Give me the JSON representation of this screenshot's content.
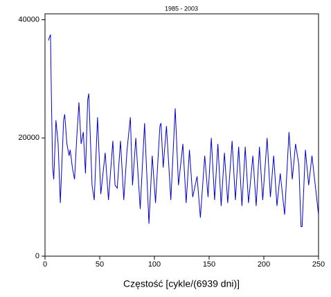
{
  "chart_data": {
    "type": "line",
    "title": "1985 - 2003",
    "x_label": "Częstość [cykle/(6939 dni)]",
    "xlim": [
      0,
      250
    ],
    "xticks": [
      0,
      50,
      100,
      150,
      200,
      250
    ],
    "ylim": [
      0,
      41000
    ],
    "yticks": [
      0,
      20000,
      40000
    ],
    "series": [
      {
        "color": "#0000cc",
        "x": [
          3,
          5,
          6,
          7,
          8,
          10,
          12,
          14,
          17,
          18,
          20,
          22,
          23,
          25,
          27,
          29,
          31,
          33,
          35,
          37,
          39,
          40,
          43,
          45,
          48,
          51,
          55,
          58,
          62,
          64,
          66,
          69,
          72,
          75,
          78,
          80,
          83,
          87,
          91,
          95,
          98,
          101,
          105,
          106,
          108,
          111,
          115,
          119,
          122,
          126,
          129,
          132,
          135,
          139,
          142,
          146,
          149,
          152,
          155,
          158,
          161,
          164,
          167,
          171,
          174,
          177,
          180,
          183,
          186,
          190,
          193,
          196,
          199,
          203,
          206,
          209,
          212,
          215,
          219,
          223,
          226,
          229,
          232,
          234,
          235,
          238,
          241,
          244,
          247,
          250
        ],
        "values": [
          36500,
          37500,
          25000,
          15000,
          13000,
          23000,
          19000,
          9000,
          23000,
          24000,
          19000,
          17000,
          18000,
          15000,
          13000,
          20000,
          26000,
          19000,
          21000,
          14000,
          26500,
          27500,
          12000,
          9500,
          23500,
          10500,
          17500,
          9500,
          19500,
          12000,
          11500,
          19500,
          9500,
          18000,
          23500,
          12000,
          20000,
          8000,
          22500,
          5500,
          17000,
          9000,
          22000,
          22500,
          15000,
          22000,
          9500,
          25000,
          12000,
          19000,
          9000,
          18000,
          10000,
          13500,
          6500,
          17000,
          10000,
          20000,
          9500,
          19000,
          8500,
          17500,
          9000,
          19500,
          9500,
          18500,
          8500,
          18500,
          9000,
          17000,
          8500,
          18500,
          9500,
          20000,
          10000,
          17000,
          8500,
          14000,
          7000,
          21000,
          13000,
          19000,
          15500,
          5000,
          5000,
          18000,
          12000,
          17000,
          12000,
          7000
        ]
      }
    ]
  }
}
